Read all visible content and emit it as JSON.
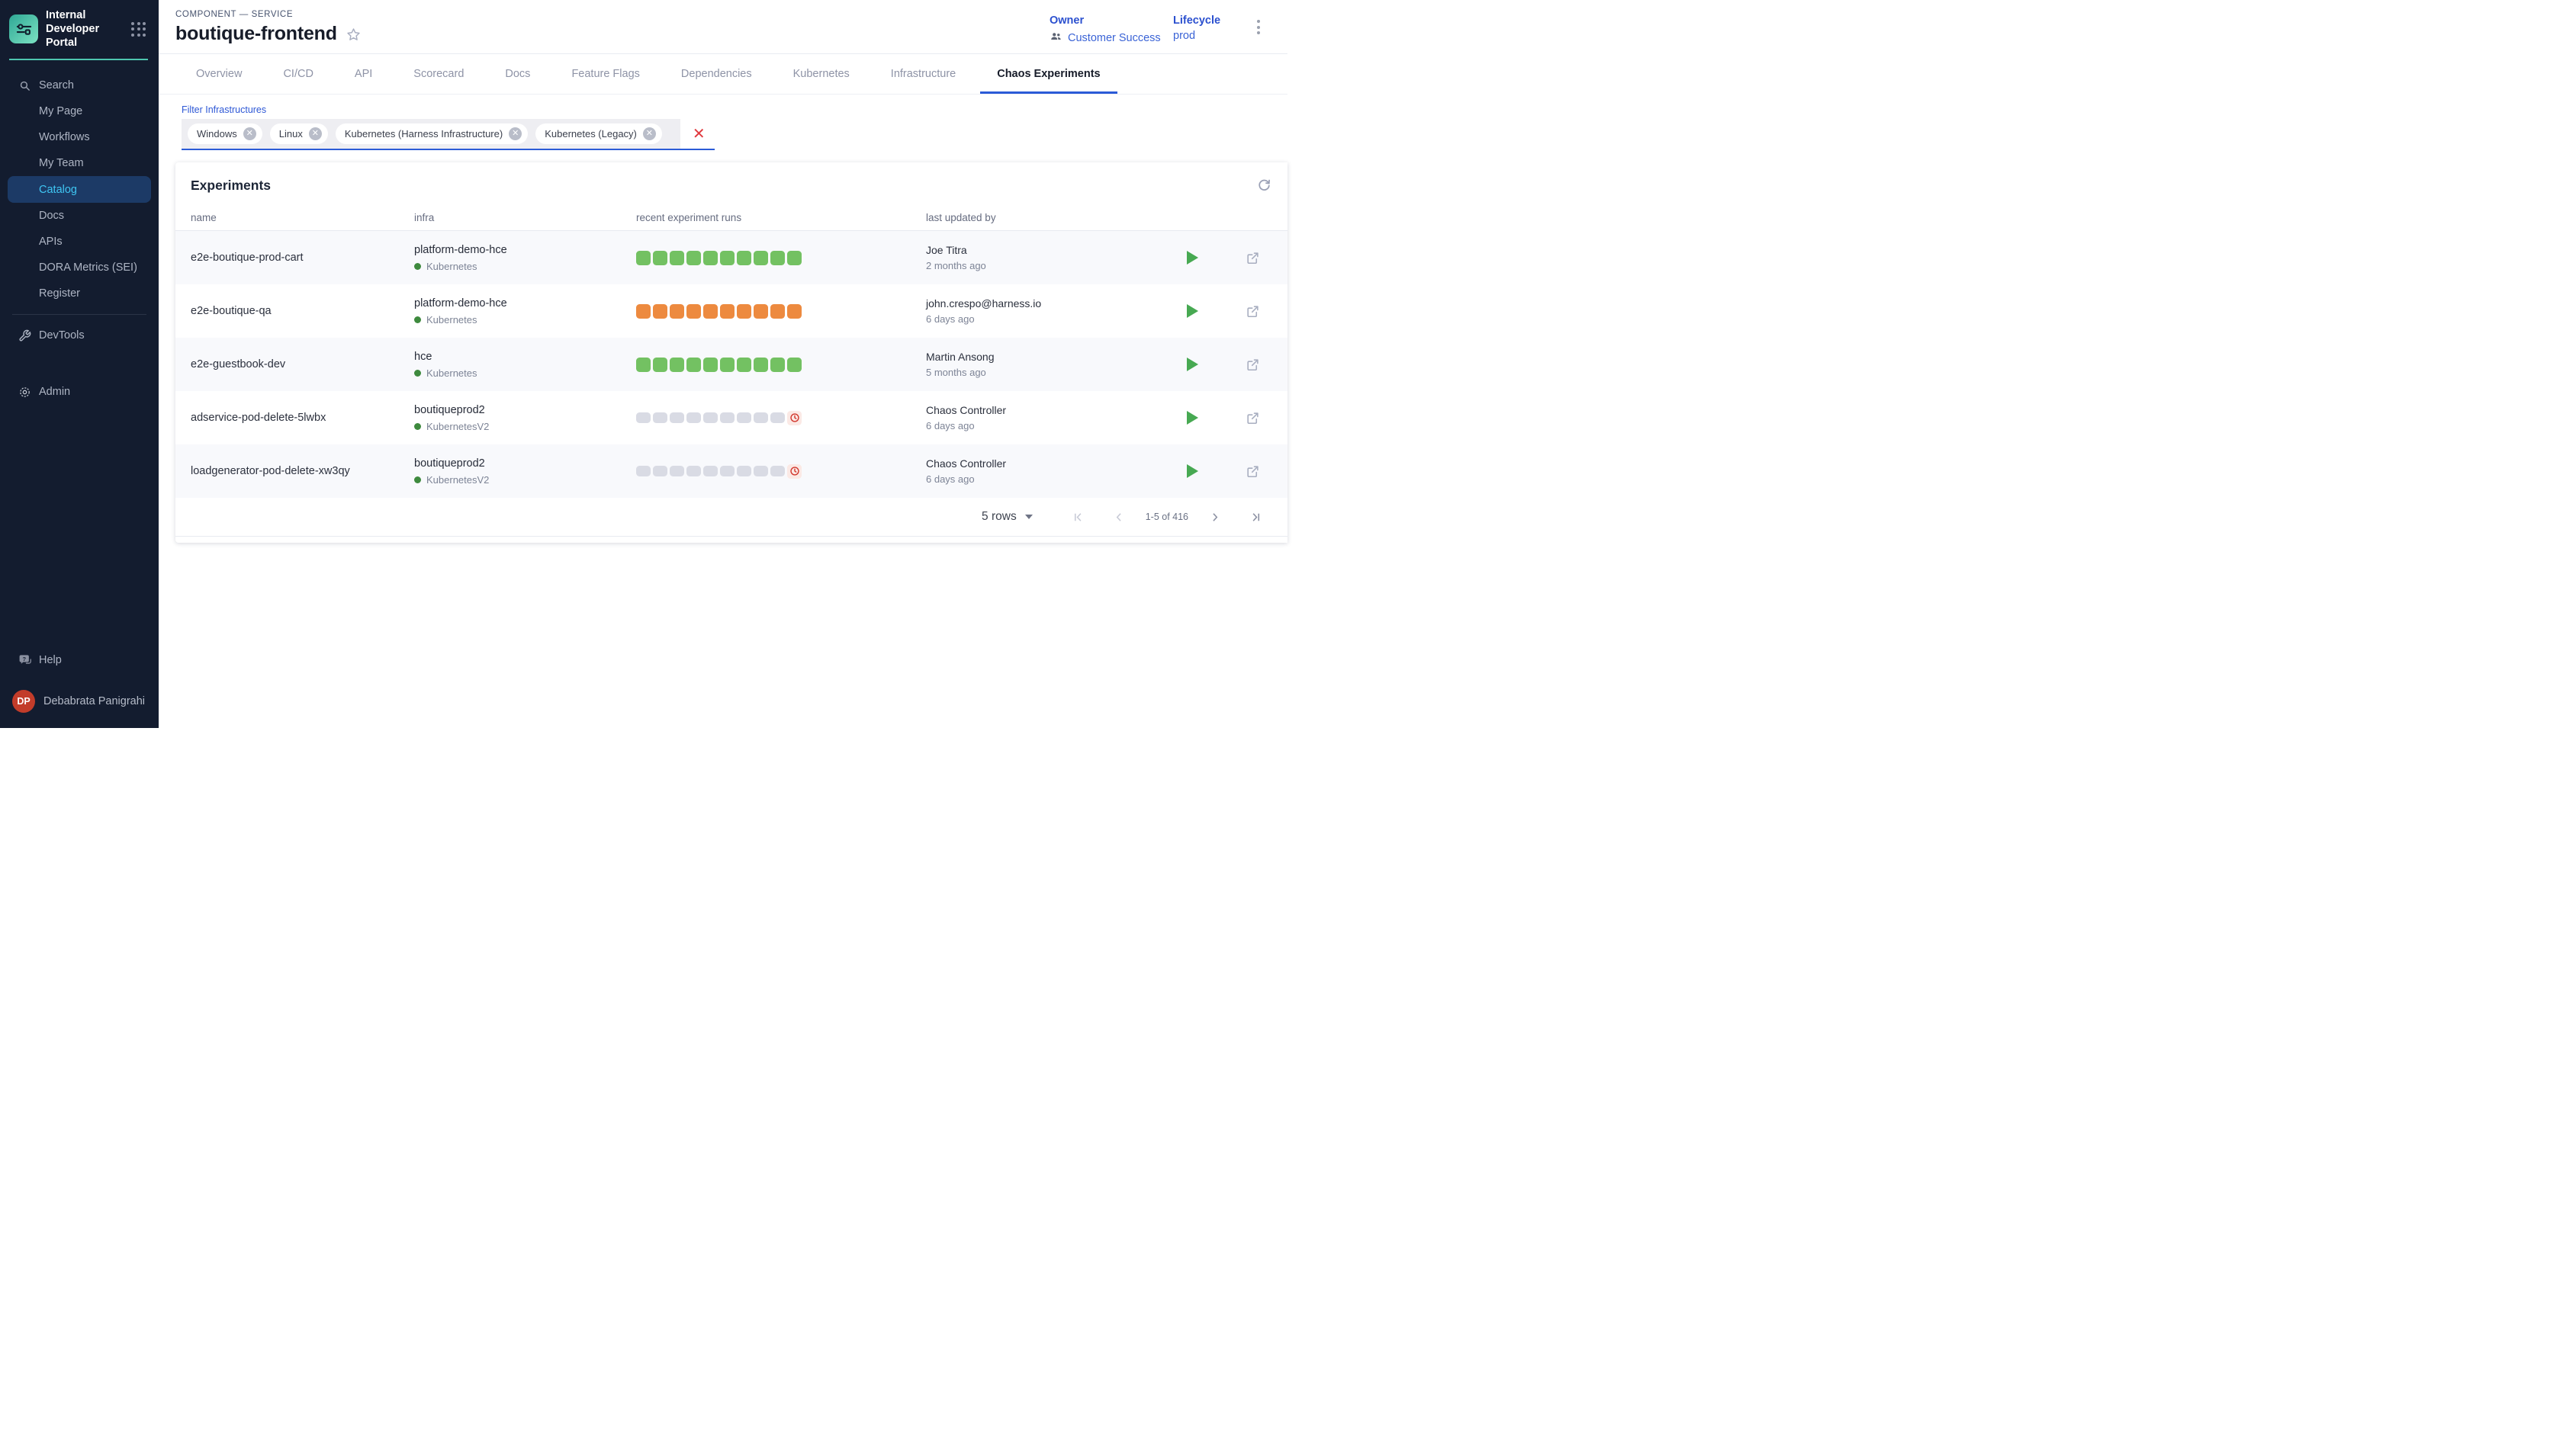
{
  "sidebar": {
    "title": "Internal Developer Portal",
    "nav_items": [
      {
        "label": "Search",
        "icon": "search"
      },
      {
        "label": "My Page"
      },
      {
        "label": "Workflows"
      },
      {
        "label": "My Team"
      },
      {
        "label": "Catalog",
        "active": true
      },
      {
        "label": "Docs"
      },
      {
        "label": "APIs"
      },
      {
        "label": "DORA Metrics (SEI)"
      },
      {
        "label": "Register"
      }
    ],
    "devtools_label": "DevTools",
    "admin_label": "Admin",
    "help_label": "Help",
    "user_initials": "DP",
    "user_name": "Debabrata Panigrahi"
  },
  "header": {
    "breadcrumb": "COMPONENT — SERVICE",
    "title": "boutique-frontend",
    "owner_label": "Owner",
    "owner_value": "Customer Success",
    "lifecycle_label": "Lifecycle",
    "lifecycle_value": "prod"
  },
  "tabs": [
    {
      "label": "Overview"
    },
    {
      "label": "CI/CD"
    },
    {
      "label": "API"
    },
    {
      "label": "Scorecard"
    },
    {
      "label": "Docs"
    },
    {
      "label": "Feature Flags"
    },
    {
      "label": "Dependencies"
    },
    {
      "label": "Kubernetes"
    },
    {
      "label": "Infrastructure"
    },
    {
      "label": "Chaos Experiments",
      "active": true
    }
  ],
  "filter": {
    "label": "Filter Infrastructures",
    "chips": [
      "Windows",
      "Linux",
      "Kubernetes (Harness Infrastructure)",
      "Kubernetes (Legacy)"
    ]
  },
  "experiments": {
    "title": "Experiments",
    "columns": [
      "name",
      "infra",
      "recent experiment runs",
      "last updated by"
    ],
    "rows": [
      {
        "name": "e2e-boutique-prod-cart",
        "infra_name": "platform-demo-hce",
        "infra_type": "Kubernetes",
        "runs": {
          "color": "green",
          "count": 10,
          "pending": false
        },
        "updated_by": "Joe Titra",
        "updated_ago": "2 months ago"
      },
      {
        "name": "e2e-boutique-qa",
        "infra_name": "platform-demo-hce",
        "infra_type": "Kubernetes",
        "runs": {
          "color": "orange",
          "count": 10,
          "pending": false
        },
        "updated_by": "john.crespo@harness.io",
        "updated_ago": "6 days ago"
      },
      {
        "name": "e2e-guestbook-dev",
        "infra_name": "hce",
        "infra_type": "Kubernetes",
        "runs": {
          "color": "green",
          "count": 10,
          "pending": false
        },
        "updated_by": "Martin Ansong",
        "updated_ago": "5 months ago"
      },
      {
        "name": "adservice-pod-delete-5lwbx",
        "infra_name": "boutiqueprod2",
        "infra_type": "KubernetesV2",
        "runs": {
          "color": "gray",
          "count": 9,
          "pending": true
        },
        "updated_by": "Chaos Controller",
        "updated_ago": "6 days ago"
      },
      {
        "name": "loadgenerator-pod-delete-xw3qy",
        "infra_name": "boutiqueprod2",
        "infra_type": "KubernetesV2",
        "runs": {
          "color": "gray",
          "count": 9,
          "pending": true
        },
        "updated_by": "Chaos Controller",
        "updated_ago": "6 days ago"
      }
    ],
    "pagination": {
      "rows_label": "5 rows",
      "range_label": "1-5 of 416"
    }
  },
  "icons": {
    "logo": "sliders",
    "apps_menu": "grid-dots",
    "search": "magnifier",
    "devtools": "wrench",
    "admin": "gear",
    "help": "chat-question",
    "favorite": "star-outline",
    "owner": "people",
    "header_menu": "kebab-vertical",
    "refresh": "sync-arrows",
    "run": "play-triangle",
    "open": "open-in-new",
    "pending_run": "clock",
    "chip_remove": "circle-x",
    "clear_filter": "x"
  },
  "colors": {
    "sidebar_bg": "#131c2f",
    "sidebar_active_bg": "#1c3a66",
    "sidebar_active_text": "#3fc6f3",
    "teal_divider": "#4ec6af",
    "accent_blue": "#2b5bd7",
    "label_blue": "#2b50cf",
    "link_blue": "#3a63d6",
    "run_green": "#73c162",
    "run_orange": "#ed8a3f",
    "run_gray": "#d9dbe4",
    "pending_red": "#d2382e",
    "pending_bg": "#fbe9e5",
    "play_green": "#47a952",
    "avatar_red": "#c23c2a",
    "clear_red": "#e0393e",
    "row_stripe": "#f8f9fc"
  }
}
